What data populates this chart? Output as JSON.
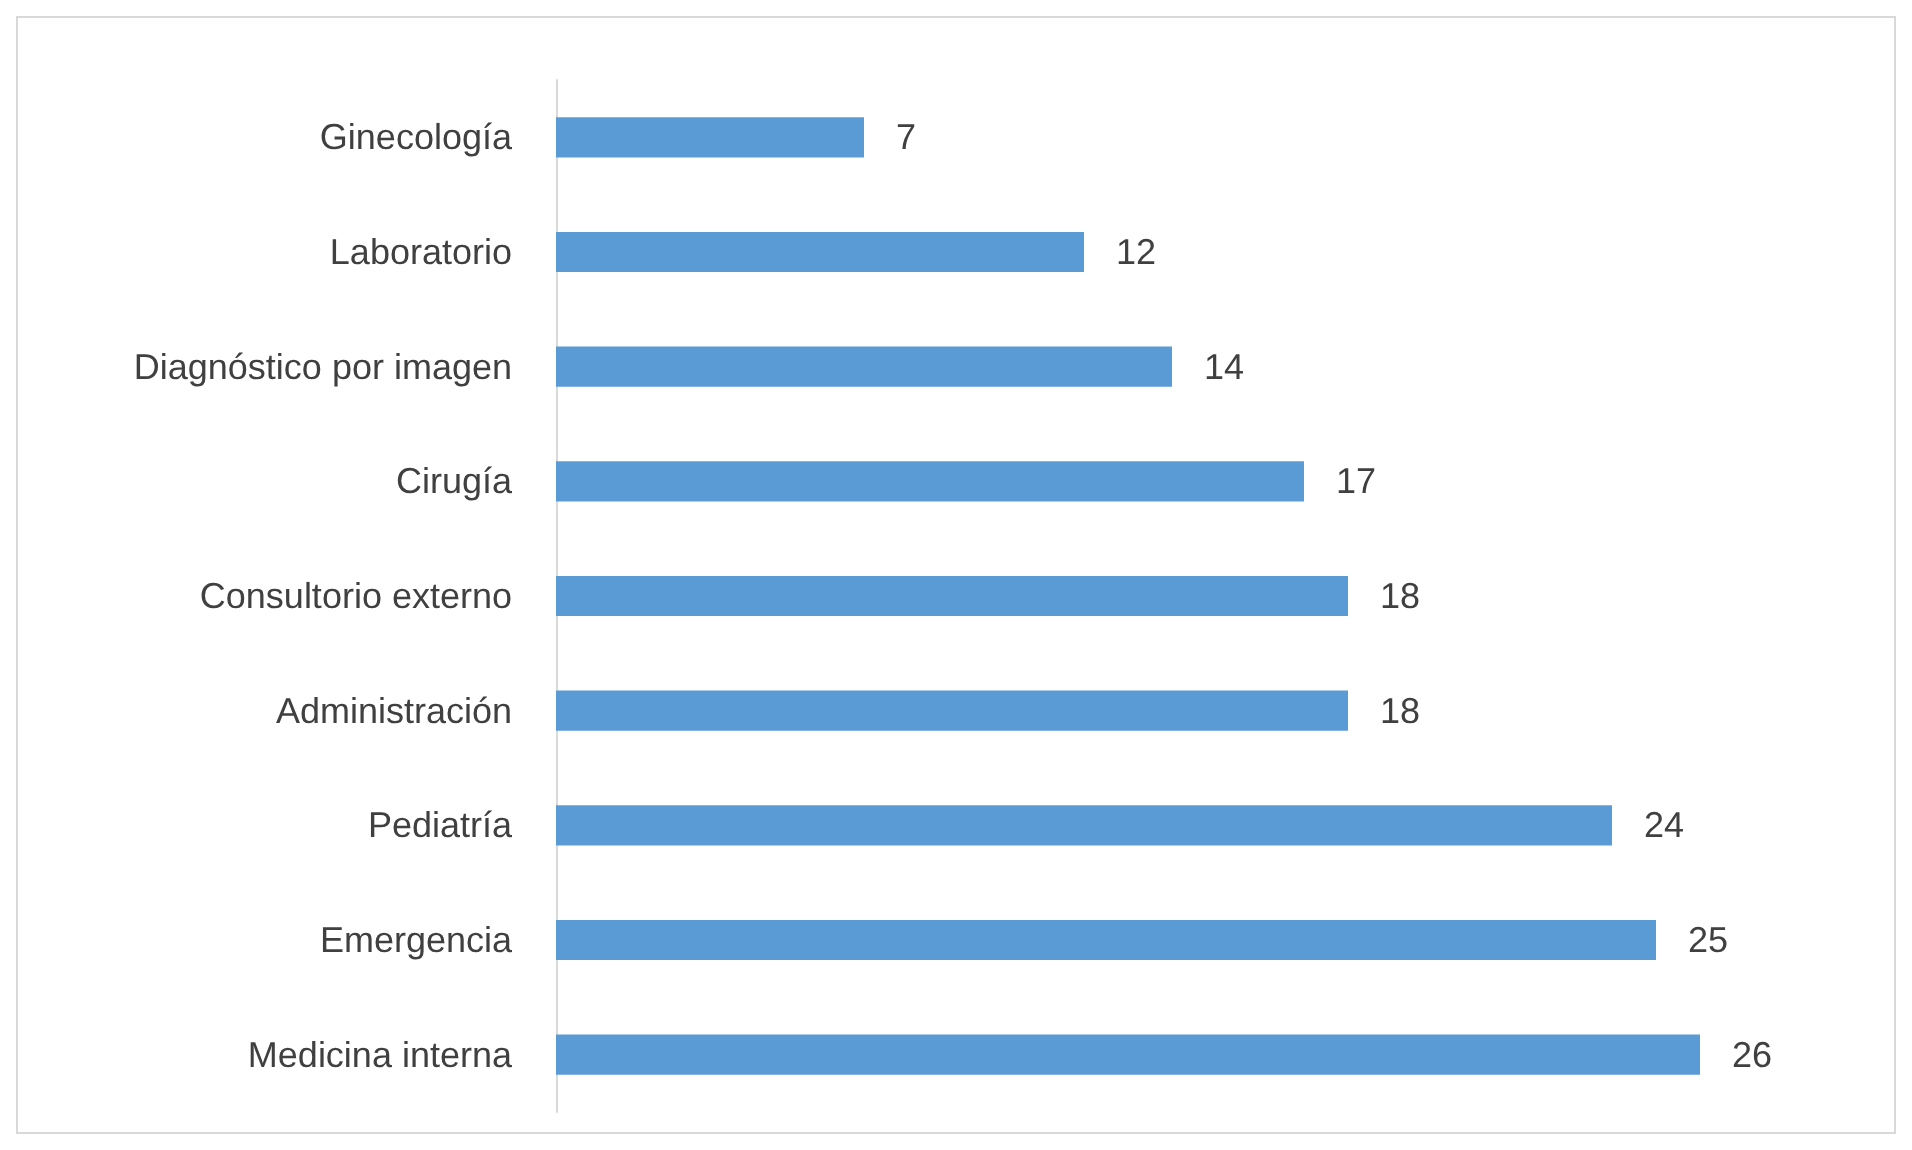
{
  "chart_data": {
    "type": "bar",
    "orientation": "horizontal",
    "categories": [
      "Ginecología",
      "Laboratorio",
      "Diagnóstico por imagen",
      "Cirugía",
      "Consultorio externo",
      "Administración",
      "Pediatría",
      "Emergencia",
      "Medicina interna"
    ],
    "values": [
      7,
      12,
      14,
      17,
      18,
      18,
      24,
      25,
      26
    ],
    "color": "#5b9bd5",
    "data_labels": true
  }
}
